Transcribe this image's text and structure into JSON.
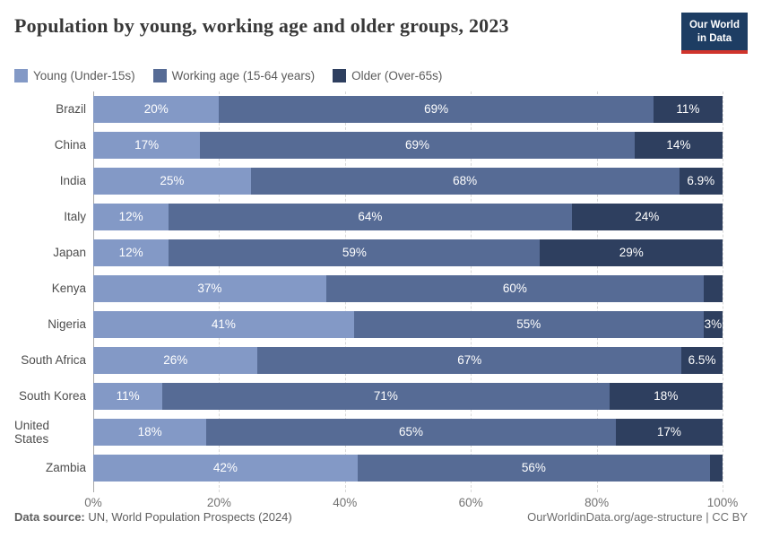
{
  "header": {
    "title": "Population by young, working age and older groups, 2023",
    "logo": {
      "line1": "Our World",
      "line2": "in Data"
    }
  },
  "colors": {
    "young": "#8399c6",
    "working": "#566b95",
    "older": "#2e3f5f",
    "logo_bg": "#1d3d63",
    "logo_accent": "#d0342c"
  },
  "legend": [
    {
      "label": "Young (Under-15s)",
      "color": "#8399c6"
    },
    {
      "label": "Working age (15-64 years)",
      "color": "#566b95"
    },
    {
      "label": "Older (Over-65s)",
      "color": "#2e3f5f"
    }
  ],
  "chart_data": {
    "type": "bar",
    "stacked": true,
    "orientation": "horizontal",
    "title": "Population by young, working age and older groups, 2023",
    "categories": [
      "Brazil",
      "China",
      "India",
      "Italy",
      "Japan",
      "Kenya",
      "Nigeria",
      "South Africa",
      "South Korea",
      "United States",
      "Zambia"
    ],
    "series": [
      {
        "name": "Young (Under-15s)",
        "color": "#8399c6",
        "values": [
          20,
          17,
          25,
          12,
          12,
          37,
          41,
          26,
          11,
          18,
          42
        ],
        "labels": [
          "20%",
          "17%",
          "25%",
          "12%",
          "12%",
          "37%",
          "41%",
          "26%",
          "11%",
          "18%",
          "42%"
        ]
      },
      {
        "name": "Working age (15-64 years)",
        "color": "#566b95",
        "values": [
          69,
          69,
          68,
          64,
          59,
          60,
          55,
          67,
          71,
          65,
          56
        ],
        "labels": [
          "69%",
          "69%",
          "68%",
          "64%",
          "59%",
          "60%",
          "55%",
          "67%",
          "71%",
          "65%",
          "56%"
        ]
      },
      {
        "name": "Older (Over-65s)",
        "color": "#2e3f5f",
        "values": [
          11,
          14,
          6.9,
          24,
          29,
          3,
          3,
          6.5,
          18,
          17,
          2
        ],
        "labels": [
          "11%",
          "14%",
          "6.9%",
          "24%",
          "29%",
          "",
          "3%",
          "6.5%",
          "18%",
          "17%",
          ""
        ]
      }
    ],
    "x_ticks": [
      {
        "label": "0%",
        "value": 0
      },
      {
        "label": "20%",
        "value": 20
      },
      {
        "label": "40%",
        "value": 40
      },
      {
        "label": "60%",
        "value": 60
      },
      {
        "label": "80%",
        "value": 80
      },
      {
        "label": "100%",
        "value": 100
      }
    ],
    "xlim": [
      0,
      100
    ],
    "grid": "dashed-vertical",
    "legend_position": "top"
  },
  "footer": {
    "source_label": "Data source:",
    "source_text": " UN, World Population Prospects (2024)",
    "credit": "OurWorldinData.org/age-structure | CC BY"
  }
}
